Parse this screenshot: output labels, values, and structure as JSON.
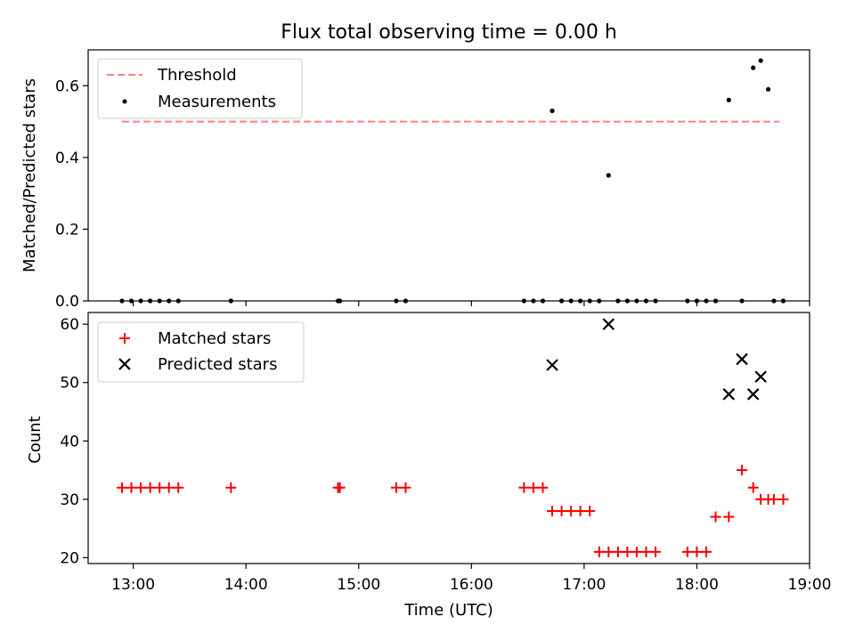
{
  "chart_data": [
    {
      "type": "scatter",
      "title": "Flux total observing time = 0.00 h",
      "xlabel": "",
      "ylabel": "Matched/Predicted stars",
      "xlim": [
        "12:36",
        "19:00"
      ],
      "ylim": [
        0.0,
        0.7
      ],
      "yticks": [
        0.0,
        0.2,
        0.4,
        0.6
      ],
      "ytick_labels": [
        "0.0",
        "0.2",
        "0.4",
        "0.6"
      ],
      "legend_position": "top-left",
      "threshold": {
        "name": "Threshold",
        "value": 0.5,
        "x_range": [
          "12:54",
          "18:44"
        ],
        "style": "dashed",
        "color": "#ff7f7f"
      },
      "series": [
        {
          "name": "Measurements",
          "marker": "dot",
          "color": "#000000",
          "x": [
            "12:54",
            "12:59",
            "13:04",
            "13:09",
            "13:14",
            "13:19",
            "13:24",
            "13:52",
            "14:49",
            "14:50",
            "15:20",
            "15:25",
            "16:28",
            "16:33",
            "16:38",
            "16:43",
            "16:48",
            "16:53",
            "16:58",
            "17:03",
            "17:08",
            "17:13",
            "17:18",
            "17:23",
            "17:28",
            "17:33",
            "17:38",
            "17:55",
            "18:00",
            "18:05",
            "18:10",
            "18:17",
            "18:24",
            "18:30",
            "18:34",
            "18:38",
            "18:41",
            "18:46"
          ],
          "y": [
            0,
            0,
            0,
            0,
            0,
            0,
            0,
            0,
            0,
            0,
            0,
            0,
            0,
            0,
            0,
            0.53,
            0,
            0,
            0,
            0,
            0,
            0.35,
            0,
            0,
            0,
            0,
            0,
            0,
            0,
            0,
            0,
            0.56,
            0,
            0.65,
            0.67,
            0.59,
            0,
            0
          ]
        }
      ]
    },
    {
      "type": "scatter",
      "title": "",
      "xlabel": "Time (UTC)",
      "ylabel": "Count",
      "xlim": [
        "12:36",
        "19:00"
      ],
      "ylim": [
        19,
        62
      ],
      "yticks": [
        20,
        30,
        40,
        50,
        60
      ],
      "ytick_labels": [
        "20",
        "30",
        "40",
        "50",
        "60"
      ],
      "xticks": [
        "13:00",
        "14:00",
        "15:00",
        "16:00",
        "17:00",
        "18:00",
        "19:00"
      ],
      "xtick_labels": [
        "13:00",
        "14:00",
        "15:00",
        "16:00",
        "17:00",
        "18:00",
        "19:00"
      ],
      "legend_position": "top-left",
      "series": [
        {
          "name": "Matched stars",
          "marker": "plus",
          "color": "#ff0000",
          "x": [
            "12:54",
            "12:59",
            "13:04",
            "13:09",
            "13:14",
            "13:19",
            "13:24",
            "13:52",
            "14:49",
            "14:50",
            "15:20",
            "15:25",
            "16:28",
            "16:33",
            "16:38",
            "16:43",
            "16:48",
            "16:53",
            "16:58",
            "17:03",
            "17:08",
            "17:13",
            "17:18",
            "17:23",
            "17:28",
            "17:33",
            "17:38",
            "17:55",
            "18:00",
            "18:05",
            "18:10",
            "18:17",
            "18:24",
            "18:30",
            "18:34",
            "18:38",
            "18:41",
            "18:46"
          ],
          "y": [
            32,
            32,
            32,
            32,
            32,
            32,
            32,
            32,
            32,
            32,
            32,
            32,
            32,
            32,
            32,
            28,
            28,
            28,
            28,
            28,
            21,
            21,
            21,
            21,
            21,
            21,
            21,
            21,
            21,
            21,
            27,
            27,
            35,
            32,
            30,
            30,
            30,
            30
          ]
        },
        {
          "name": "Predicted stars",
          "marker": "x",
          "color": "#000000",
          "x": [
            "16:43",
            "17:13",
            "18:17",
            "18:24",
            "18:30",
            "18:34"
          ],
          "y": [
            53,
            60,
            48,
            54,
            48,
            51
          ]
        }
      ]
    }
  ]
}
